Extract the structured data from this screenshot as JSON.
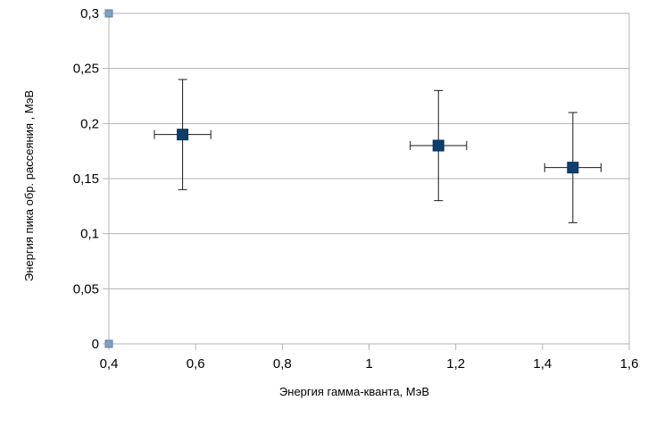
{
  "chart_data": {
    "type": "scatter",
    "title": "",
    "xlabel": "Энергия гамма-кванта, МэВ",
    "ylabel": "Энергия пика обр. рассеяния , МэВ",
    "xlim": [
      0.4,
      1.6
    ],
    "ylim": [
      0,
      0.3
    ],
    "x_ticks": [
      0.4,
      0.6,
      0.8,
      1.0,
      1.2,
      1.4,
      1.6
    ],
    "x_tick_labels": [
      "0,4",
      "0,6",
      "0,8",
      "1",
      "1,2",
      "1,4",
      "1,6"
    ],
    "y_ticks": [
      0,
      0.05,
      0.1,
      0.15,
      0.2,
      0.25,
      0.3
    ],
    "y_tick_labels": [
      "0",
      "0,05",
      "0,1",
      "0,15",
      "0,2",
      "0,25",
      "0,3"
    ],
    "grid": "horizontal",
    "legend": "none",
    "series": [
      {
        "color": "#0d3f6e",
        "marker": "square",
        "points": [
          {
            "x": 0.57,
            "y": 0.19,
            "xerr": 0.065,
            "yerr": 0.05
          },
          {
            "x": 1.16,
            "y": 0.18,
            "xerr": 0.065,
            "yerr": 0.05
          },
          {
            "x": 1.47,
            "y": 0.16,
            "xerr": 0.065,
            "yerr": 0.05
          }
        ]
      },
      {
        "color": "#7fa1c6",
        "marker": "square-small",
        "points": [
          {
            "x": 0.4,
            "y": 0.3
          },
          {
            "x": 0.4,
            "y": 0
          }
        ]
      }
    ]
  }
}
